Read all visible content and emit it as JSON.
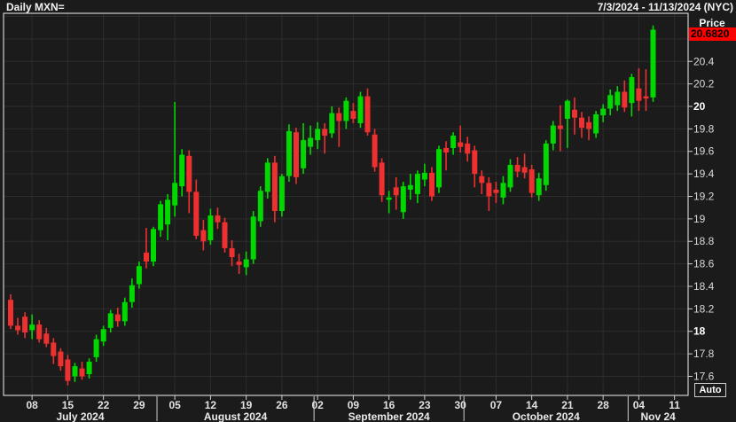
{
  "header": {
    "title": "Daily MXN=",
    "date_range": "7/3/2024 - 11/13/2024 (NYC)"
  },
  "price_axis": {
    "label": "Price",
    "current_price": "20.6820",
    "auto_label": "Auto",
    "ticks": [
      {
        "label": "20.4",
        "value": 20.4,
        "bold": false
      },
      {
        "label": "20.2",
        "value": 20.2,
        "bold": false
      },
      {
        "label": "20",
        "value": 20.0,
        "bold": true
      },
      {
        "label": "19.8",
        "value": 19.8,
        "bold": false
      },
      {
        "label": "19.6",
        "value": 19.6,
        "bold": false
      },
      {
        "label": "19.4",
        "value": 19.4,
        "bold": false
      },
      {
        "label": "19.2",
        "value": 19.2,
        "bold": false
      },
      {
        "label": "19",
        "value": 19.0,
        "bold": false
      },
      {
        "label": "18.8",
        "value": 18.8,
        "bold": false
      },
      {
        "label": "18.6",
        "value": 18.6,
        "bold": false
      },
      {
        "label": "18.4",
        "value": 18.4,
        "bold": false
      },
      {
        "label": "18.2",
        "value": 18.2,
        "bold": false
      },
      {
        "label": "18",
        "value": 18.0,
        "bold": true
      },
      {
        "label": "17.8",
        "value": 17.8,
        "bold": false
      },
      {
        "label": "17.6",
        "value": 17.6,
        "bold": false
      }
    ]
  },
  "x_axis": {
    "week_ticks": [
      {
        "label": "08",
        "i": 3
      },
      {
        "label": "15",
        "i": 8
      },
      {
        "label": "22",
        "i": 13
      },
      {
        "label": "29",
        "i": 18
      },
      {
        "label": "05",
        "i": 23
      },
      {
        "label": "12",
        "i": 28
      },
      {
        "label": "19",
        "i": 33
      },
      {
        "label": "26",
        "i": 38
      },
      {
        "label": "02",
        "i": 43
      },
      {
        "label": "09",
        "i": 48
      },
      {
        "label": "16",
        "i": 53
      },
      {
        "label": "23",
        "i": 58
      },
      {
        "label": "30",
        "i": 63
      },
      {
        "label": "07",
        "i": 68
      },
      {
        "label": "14",
        "i": 73
      },
      {
        "label": "21",
        "i": 78
      },
      {
        "label": "28",
        "i": 83
      },
      {
        "label": "04",
        "i": 88
      },
      {
        "label": "11",
        "i": 93
      }
    ],
    "months": [
      {
        "label": "July 2024",
        "from": 0,
        "to": 20
      },
      {
        "label": "August 2024",
        "from": 21,
        "to": 42
      },
      {
        "label": "September 2024",
        "from": 43,
        "to": 63
      },
      {
        "label": "October 2024",
        "from": 64,
        "to": 86
      },
      {
        "label": "Nov 24",
        "from": 87,
        "to": 90
      }
    ]
  },
  "colors": {
    "background": "#1b1b1b",
    "grid": "#2d2d2d",
    "frame": "#f0f0f0",
    "bull": "#00d800",
    "bear": "#ee3030",
    "axis_text": "#d9d9d9",
    "axis_text_bold": "#ffffff",
    "tick": "#cfcfcf",
    "price_flag_bg": "#fe0000",
    "price_flag_text": "#000000"
  },
  "chart_data": {
    "type": "candlestick",
    "title": "Daily MXN=",
    "symbol": "MXN=",
    "interval": "Daily",
    "ylabel": "Price",
    "ylim": [
      17.43,
      20.82
    ],
    "grid": true,
    "last_price": 20.682,
    "columns": [
      "date",
      "open",
      "high",
      "low",
      "close"
    ],
    "candles": [
      [
        "07-03",
        18.28,
        18.33,
        18.02,
        18.05
      ],
      [
        "07-04",
        18.05,
        18.12,
        17.97,
        18.01
      ],
      [
        "07-05",
        18.13,
        18.17,
        17.94,
        17.99
      ],
      [
        "07-08",
        18.01,
        18.15,
        17.93,
        18.06
      ],
      [
        "07-09",
        18.06,
        18.1,
        17.9,
        17.93
      ],
      [
        "07-10",
        17.98,
        18.03,
        17.86,
        17.89
      ],
      [
        "07-11",
        17.9,
        17.94,
        17.71,
        17.78
      ],
      [
        "07-12",
        17.82,
        17.85,
        17.65,
        17.69
      ],
      [
        "07-15",
        17.75,
        17.79,
        17.52,
        17.56
      ],
      [
        "07-16",
        17.6,
        17.72,
        17.55,
        17.69
      ],
      [
        "07-17",
        17.67,
        17.73,
        17.57,
        17.6
      ],
      [
        "07-18",
        17.62,
        17.76,
        17.58,
        17.73
      ],
      [
        "07-19",
        17.77,
        17.97,
        17.73,
        17.93
      ],
      [
        "07-22",
        17.91,
        18.05,
        17.87,
        18.02
      ],
      [
        "07-23",
        18.03,
        18.19,
        17.99,
        18.16
      ],
      [
        "07-24",
        18.15,
        18.21,
        18.04,
        18.09
      ],
      [
        "07-25",
        18.09,
        18.3,
        18.05,
        18.26
      ],
      [
        "07-26",
        18.26,
        18.47,
        18.21,
        18.41
      ],
      [
        "07-29",
        18.42,
        18.62,
        18.38,
        18.58
      ],
      [
        "07-30",
        18.7,
        18.92,
        18.56,
        18.62
      ],
      [
        "07-31",
        18.62,
        18.93,
        18.58,
        18.91
      ],
      [
        "08-01",
        18.9,
        19.16,
        18.84,
        19.13
      ],
      [
        "08-02",
        18.95,
        19.22,
        18.81,
        19.17
      ],
      [
        "08-05",
        19.12,
        20.04,
        19.02,
        19.32
      ],
      [
        "08-06",
        19.29,
        19.62,
        19.2,
        19.57
      ],
      [
        "08-07",
        19.56,
        19.61,
        19.05,
        19.24
      ],
      [
        "08-08",
        19.24,
        19.35,
        18.82,
        18.85
      ],
      [
        "08-09",
        18.9,
        18.99,
        18.72,
        18.8
      ],
      [
        "08-12",
        18.81,
        19.09,
        18.77,
        19.03
      ],
      [
        "08-13",
        19.03,
        19.1,
        18.91,
        18.97
      ],
      [
        "08-14",
        18.97,
        19.01,
        18.7,
        18.74
      ],
      [
        "08-15",
        18.74,
        18.81,
        18.58,
        18.66
      ],
      [
        "08-16",
        18.62,
        18.69,
        18.51,
        18.59
      ],
      [
        "08-19",
        18.57,
        18.71,
        18.5,
        18.64
      ],
      [
        "08-20",
        18.64,
        19.07,
        18.6,
        19.02
      ],
      [
        "08-21",
        18.98,
        19.29,
        18.93,
        19.25
      ],
      [
        "08-22",
        19.24,
        19.54,
        19.18,
        19.5
      ],
      [
        "08-23",
        19.5,
        19.56,
        18.97,
        19.07
      ],
      [
        "08-26",
        19.07,
        19.4,
        19.02,
        19.38
      ],
      [
        "08-27",
        19.38,
        19.84,
        19.33,
        19.78
      ],
      [
        "08-28",
        19.77,
        19.81,
        19.31,
        19.37
      ],
      [
        "08-29",
        19.45,
        19.85,
        19.4,
        19.7
      ],
      [
        "08-30",
        19.64,
        19.83,
        19.57,
        19.72
      ],
      [
        "09-02",
        19.7,
        19.86,
        19.62,
        19.8
      ],
      [
        "09-03",
        19.8,
        19.85,
        19.58,
        19.74
      ],
      [
        "09-04",
        19.76,
        20.0,
        19.72,
        19.94
      ],
      [
        "09-05",
        19.94,
        19.99,
        19.64,
        19.87
      ],
      [
        "09-06",
        19.87,
        20.08,
        19.8,
        20.05
      ],
      [
        "09-09",
        19.96,
        20.03,
        19.85,
        19.89
      ],
      [
        "09-10",
        19.85,
        20.13,
        19.81,
        20.09
      ],
      [
        "09-11",
        20.09,
        20.16,
        19.74,
        19.77
      ],
      [
        "09-12",
        19.75,
        19.8,
        19.42,
        19.46
      ],
      [
        "09-13",
        19.5,
        19.54,
        19.15,
        19.21
      ],
      [
        "09-16",
        19.17,
        19.25,
        19.05,
        19.19
      ],
      [
        "09-17",
        19.28,
        19.37,
        19.08,
        19.21
      ],
      [
        "09-18",
        19.06,
        19.33,
        19.0,
        19.29
      ],
      [
        "09-19",
        19.26,
        19.4,
        19.17,
        19.3
      ],
      [
        "09-20",
        19.22,
        19.43,
        19.14,
        19.4
      ],
      [
        "09-23",
        19.35,
        19.49,
        19.29,
        19.41
      ],
      [
        "09-24",
        19.41,
        19.46,
        19.16,
        19.2
      ],
      [
        "09-25",
        19.28,
        19.65,
        19.23,
        19.62
      ],
      [
        "09-26",
        19.63,
        19.69,
        19.43,
        19.59
      ],
      [
        "09-27",
        19.63,
        19.77,
        19.57,
        19.74
      ],
      [
        "09-30",
        19.68,
        19.83,
        19.59,
        19.64
      ],
      [
        "10-01",
        19.67,
        19.73,
        19.51,
        19.58
      ],
      [
        "10-02",
        19.61,
        19.65,
        19.28,
        19.4
      ],
      [
        "10-03",
        19.38,
        19.43,
        19.22,
        19.32
      ],
      [
        "10-04",
        19.32,
        19.37,
        19.07,
        19.2
      ],
      [
        "10-07",
        19.26,
        19.33,
        19.14,
        19.23
      ],
      [
        "10-08",
        19.19,
        19.38,
        19.13,
        19.32
      ],
      [
        "10-09",
        19.28,
        19.53,
        19.24,
        19.48
      ],
      [
        "10-10",
        19.48,
        19.55,
        19.37,
        19.42
      ],
      [
        "10-11",
        19.46,
        19.58,
        19.36,
        19.41
      ],
      [
        "10-14",
        19.44,
        19.48,
        19.19,
        19.23
      ],
      [
        "10-15",
        19.21,
        19.41,
        19.16,
        19.36
      ],
      [
        "10-16",
        19.3,
        19.7,
        19.25,
        19.67
      ],
      [
        "10-17",
        19.67,
        19.87,
        19.61,
        19.83
      ],
      [
        "10-18",
        19.83,
        20.01,
        19.6,
        19.8
      ],
      [
        "10-21",
        19.89,
        20.06,
        19.63,
        20.05
      ],
      [
        "10-22",
        19.97,
        20.08,
        19.75,
        19.9
      ],
      [
        "10-23",
        19.9,
        19.95,
        19.72,
        19.81
      ],
      [
        "10-24",
        19.86,
        19.91,
        19.7,
        19.8
      ],
      [
        "10-25",
        19.76,
        19.96,
        19.72,
        19.93
      ],
      [
        "10-28",
        19.92,
        20.02,
        19.86,
        19.98
      ],
      [
        "10-29",
        19.98,
        20.15,
        19.92,
        20.1
      ],
      [
        "10-30",
        20.01,
        20.18,
        19.96,
        20.13
      ],
      [
        "10-31",
        20.13,
        20.23,
        19.95,
        19.99
      ],
      [
        "11-01",
        20.03,
        20.29,
        19.91,
        20.26
      ],
      [
        "11-04",
        20.16,
        20.34,
        19.96,
        20.05
      ],
      [
        "11-05",
        20.09,
        20.33,
        19.96,
        20.07
      ],
      [
        "11-06",
        20.08,
        20.72,
        20.04,
        20.682
      ]
    ]
  }
}
